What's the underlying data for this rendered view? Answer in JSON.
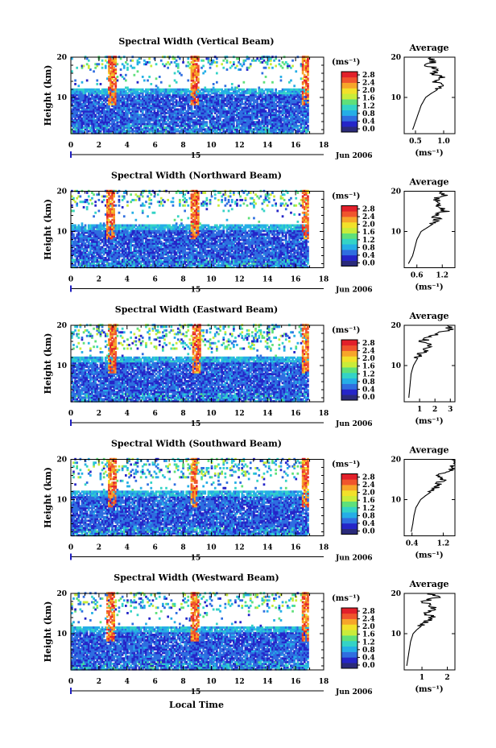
{
  "figure": {
    "date_label": "Jun 2006",
    "day_label": "15",
    "xlabel": "Local Time",
    "ylabel": "Height (km)",
    "unit_label": "(ms⁻¹)",
    "avg_title": "Average"
  },
  "colorbar": {
    "ticks": [
      "2.8",
      "2.4",
      "2.0",
      "1.6",
      "1.2",
      "0.8",
      "0.4",
      "0.0"
    ],
    "range": [
      0,
      3.0
    ],
    "colors": [
      "#2a2a7a",
      "#2525c8",
      "#2f6ee0",
      "#25aee6",
      "#34d3c6",
      "#5fe07a",
      "#c9ec3a",
      "#f2e12a",
      "#f7a52a",
      "#f0552d",
      "#e2202a"
    ]
  },
  "chart_data": [
    {
      "type": "heatmap",
      "title": "Spectral Width (Vertical Beam)",
      "xlim": [
        0,
        18
      ],
      "ylim": [
        1,
        20
      ],
      "xticks": [
        0,
        2,
        4,
        6,
        8,
        10,
        12,
        14,
        16,
        18
      ],
      "yticks": [
        10,
        20
      ],
      "data_extent_hours": [
        0,
        16.8
      ],
      "main_layer_top_km": 12,
      "upper_layer_km": [
        17,
        20
      ],
      "high_width_bursts_hours": [
        2.9,
        8.8,
        16.7
      ],
      "average_profile": {
        "xticks": [
          "0.5",
          "1.0"
        ],
        "xlim": [
          0.3,
          1.2
        ],
        "height_km": [
          2,
          4,
          6,
          8,
          10,
          11,
          12,
          13,
          14,
          15,
          16,
          17,
          18,
          19,
          20
        ],
        "width_ms": [
          0.45,
          0.5,
          0.55,
          0.6,
          0.68,
          0.78,
          0.9,
          1.0,
          0.85,
          0.95,
          0.8,
          0.9,
          0.7,
          0.85,
          0.75
        ]
      }
    },
    {
      "type": "heatmap",
      "title": "Spectral Width (Northward Beam)",
      "xlim": [
        0,
        18
      ],
      "ylim": [
        1,
        20
      ],
      "xticks": [
        0,
        2,
        4,
        6,
        8,
        10,
        12,
        14,
        16,
        18
      ],
      "yticks": [
        10,
        20
      ],
      "data_extent_hours": [
        0,
        16.8
      ],
      "main_layer_top_km": 11.5,
      "upper_layer_km": [
        16,
        20
      ],
      "high_width_bursts_hours": [
        2.8,
        8.8,
        16.7
      ],
      "average_profile": {
        "xticks": [
          "0.6",
          "1.2"
        ],
        "xlim": [
          0.3,
          1.5
        ],
        "height_km": [
          2,
          4,
          6,
          8,
          10,
          11,
          12,
          13,
          14,
          15,
          16,
          17,
          18,
          19,
          20
        ],
        "width_ms": [
          0.4,
          0.5,
          0.55,
          0.6,
          0.7,
          0.85,
          1.0,
          1.1,
          1.0,
          1.3,
          1.1,
          1.2,
          1.0,
          1.25,
          1.1
        ]
      }
    },
    {
      "type": "heatmap",
      "title": "Spectral Width (Eastward Beam)",
      "xlim": [
        0,
        18
      ],
      "ylim": [
        1,
        20
      ],
      "xticks": [
        0,
        2,
        4,
        6,
        8,
        10,
        12,
        14,
        16,
        18
      ],
      "yticks": [
        10,
        20
      ],
      "data_extent_hours": [
        0,
        16.8
      ],
      "main_layer_top_km": 12,
      "upper_layer_km": [
        14,
        20
      ],
      "high_width_bursts_hours": [
        2.9,
        8.9,
        16.7
      ],
      "average_profile": {
        "xticks": [
          "1",
          "2",
          "3"
        ],
        "xlim": [
          0,
          3.3
        ],
        "height_km": [
          2,
          4,
          6,
          8,
          10,
          11,
          12,
          13,
          14,
          15,
          16,
          17,
          18,
          19,
          20
        ],
        "width_ms": [
          0.3,
          0.35,
          0.4,
          0.45,
          0.6,
          0.75,
          0.9,
          1.1,
          1.4,
          1.8,
          1.2,
          1.6,
          2.2,
          3.0,
          2.8
        ]
      }
    },
    {
      "type": "heatmap",
      "title": "Spectral Width (Southward Beam)",
      "xlim": [
        0,
        18
      ],
      "ylim": [
        1,
        20
      ],
      "xticks": [
        0,
        2,
        4,
        6,
        8,
        10,
        12,
        14,
        16,
        18
      ],
      "yticks": [
        10,
        20
      ],
      "data_extent_hours": [
        0,
        16.8
      ],
      "main_layer_top_km": 12,
      "upper_layer_km": [
        15,
        20
      ],
      "high_width_bursts_hours": [
        2.9,
        8.7,
        16.7
      ],
      "average_profile": {
        "xticks": [
          "0.4",
          "1.2"
        ],
        "xlim": [
          0.2,
          1.5
        ],
        "height_km": [
          2,
          4,
          6,
          8,
          10,
          11,
          12,
          13,
          14,
          15,
          16,
          17,
          18,
          19,
          20
        ],
        "width_ms": [
          0.38,
          0.42,
          0.45,
          0.5,
          0.62,
          0.75,
          0.9,
          1.05,
          1.1,
          1.2,
          1.05,
          1.3,
          1.45,
          1.5,
          1.4
        ]
      }
    },
    {
      "type": "heatmap",
      "title": "Spectral Width (Westward Beam)",
      "xlim": [
        0,
        18
      ],
      "ylim": [
        1,
        20
      ],
      "xticks": [
        0,
        2,
        4,
        6,
        8,
        10,
        12,
        14,
        16,
        18
      ],
      "yticks": [
        10,
        20
      ],
      "data_extent_hours": [
        0,
        16.8
      ],
      "main_layer_top_km": 11.5,
      "upper_layer_km": [
        16,
        20
      ],
      "high_width_bursts_hours": [
        2.8,
        8.8,
        16.7
      ],
      "average_profile": {
        "xticks": [
          "1",
          "2"
        ],
        "xlim": [
          0.3,
          2.3
        ],
        "height_km": [
          2,
          4,
          6,
          8,
          10,
          11,
          12,
          13,
          14,
          15,
          16,
          17,
          18,
          19,
          20
        ],
        "width_ms": [
          0.4,
          0.45,
          0.5,
          0.55,
          0.65,
          0.8,
          1.0,
          1.2,
          1.4,
          1.2,
          1.5,
          1.3,
          1.1,
          1.6,
          1.3
        ]
      }
    }
  ]
}
